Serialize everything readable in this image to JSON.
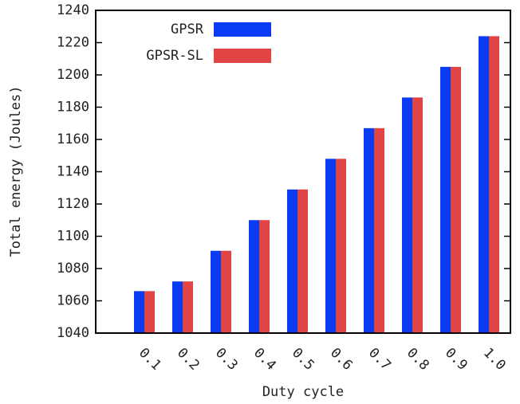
{
  "chart_data": {
    "type": "bar",
    "categories": [
      "0.1",
      "0.2",
      "0.3",
      "0.4",
      "0.5",
      "0.6",
      "0.7",
      "0.8",
      "0.9",
      "1.0"
    ],
    "series": [
      {
        "name": "GPSR",
        "color": "#0b3cf5",
        "values": [
          1066,
          1072,
          1091,
          1110,
          1129,
          1148,
          1167,
          1186,
          1205,
          1224
        ]
      },
      {
        "name": "GPSR-SL",
        "color": "#e04444",
        "values": [
          1066,
          1072,
          1091,
          1110,
          1129,
          1148,
          1167,
          1186,
          1205,
          1224
        ]
      }
    ],
    "xlabel": "Duty cycle",
    "ylabel": "Total energy (Joules)",
    "ylim": [
      1040,
      1240
    ],
    "yticks": [
      1040,
      1060,
      1080,
      1100,
      1120,
      1140,
      1160,
      1180,
      1200,
      1220,
      1240
    ],
    "legend": "upper left"
  }
}
